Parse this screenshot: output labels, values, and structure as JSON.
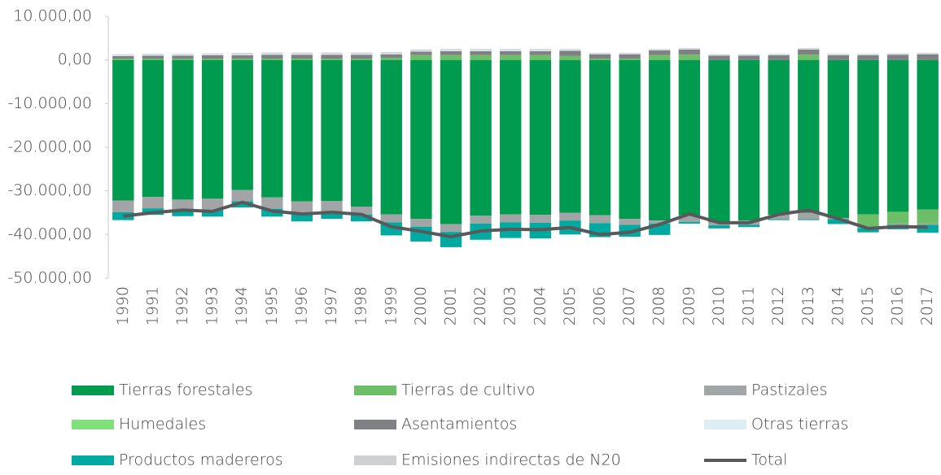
{
  "chart_data": {
    "type": "bar",
    "stacked": true,
    "grid": false,
    "categories": [
      "1990",
      "1991",
      "1992",
      "1993",
      "1994",
      "1995",
      "1996",
      "1997",
      "1998",
      "1999",
      "2000",
      "2001",
      "2002",
      "2003",
      "2004",
      "2005",
      "2006",
      "2007",
      "2008",
      "2009",
      "2010",
      "2011",
      "2012",
      "2013",
      "2014",
      "2015",
      "2016",
      "2017"
    ],
    "ylim": [
      -50000,
      10000
    ],
    "yticks": [
      {
        "value": 10000,
        "label": "10.000,00"
      },
      {
        "value": 0,
        "label": "0,00"
      },
      {
        "value": -10000,
        "label": "-10.000,00"
      },
      {
        "value": -20000,
        "label": "-20.000,00"
      },
      {
        "value": -30000,
        "label": "-30.000,00"
      },
      {
        "value": -40000,
        "label": "-40.000,00"
      },
      {
        "value": -50000,
        "label": "-50.000,00"
      }
    ],
    "series": [
      {
        "name": "Tierras forestales",
        "color": "#009b4f",
        "values": [
          -32200,
          -31400,
          -32000,
          -31800,
          -29800,
          -31500,
          -32400,
          -32300,
          -33600,
          -35400,
          -36400,
          -37600,
          -35700,
          -35400,
          -35500,
          -35000,
          -35600,
          -36400,
          -36800,
          -35600,
          -37200,
          -36800,
          -35500,
          -35000,
          -36200,
          -35400,
          -34800,
          -34300
        ]
      },
      {
        "name": "Tierras de cultivo",
        "color": "#6cbf66",
        "values": [
          300,
          300,
          300,
          300,
          300,
          300,
          300,
          300,
          300,
          500,
          1100,
          1100,
          1100,
          1100,
          1100,
          900,
          300,
          300,
          1100,
          1200,
          0,
          0,
          0,
          1200,
          0,
          -2800,
          -2700,
          -3200
        ]
      },
      {
        "name": "Pastizales",
        "color": "#a2a4a6",
        "values": [
          -2700,
          -2600,
          -2400,
          -2600,
          -2600,
          -2600,
          -2800,
          -2400,
          -1800,
          -1800,
          -1800,
          -1800,
          -1800,
          -1800,
          -1800,
          -1800,
          -1800,
          -1400,
          -700,
          -1500,
          -700,
          -1000,
          -1000,
          -1500,
          -300,
          -300,
          -300,
          -300
        ]
      },
      {
        "name": "Humedales",
        "color": "#7fe07c",
        "values": [
          0,
          0,
          0,
          0,
          0,
          0,
          0,
          0,
          0,
          0,
          0,
          0,
          0,
          0,
          0,
          0,
          0,
          0,
          0,
          0,
          0,
          0,
          0,
          0,
          0,
          0,
          0,
          0
        ]
      },
      {
        "name": "Asentamientos",
        "color": "#808184",
        "values": [
          600,
          700,
          700,
          800,
          800,
          900,
          900,
          900,
          900,
          800,
          800,
          900,
          900,
          900,
          900,
          1200,
          1000,
          1000,
          1100,
          1200,
          1000,
          1000,
          1100,
          1200,
          1100,
          1100,
          1200,
          1300
        ]
      },
      {
        "name": "Otras tierras",
        "color": "#dcedf3",
        "values": [
          200,
          200,
          200,
          200,
          200,
          200,
          200,
          200,
          200,
          200,
          200,
          200,
          200,
          200,
          200,
          200,
          100,
          100,
          100,
          100,
          100,
          100,
          100,
          100,
          100,
          100,
          100,
          100
        ]
      },
      {
        "name": "Productos madereros",
        "color": "#00aaa0",
        "values": [
          -1800,
          -1500,
          -1400,
          -1500,
          -1400,
          -1800,
          -1800,
          -1700,
          -1600,
          -3000,
          -3400,
          -3500,
          -3700,
          -3600,
          -3600,
          -3200,
          -3200,
          -2700,
          -2600,
          -400,
          -700,
          -500,
          -200,
          -200,
          -1100,
          -1000,
          -1000,
          -1800
        ]
      },
      {
        "name": "Emisiones indirectas de N20",
        "color": "#cfd0d2",
        "values": [
          200,
          200,
          200,
          200,
          300,
          300,
          300,
          300,
          300,
          300,
          300,
          300,
          300,
          300,
          300,
          200,
          200,
          200,
          200,
          200,
          200,
          200,
          200,
          200,
          200,
          200,
          200,
          200
        ]
      },
      {
        "name": "Total",
        "type": "line",
        "color": "#58595b",
        "values": [
          -35800,
          -35000,
          -34400,
          -34700,
          -32600,
          -34600,
          -35300,
          -34900,
          -35400,
          -38200,
          -39300,
          -40500,
          -39200,
          -38800,
          -38900,
          -38400,
          -40000,
          -39500,
          -37700,
          -35300,
          -37300,
          -37300,
          -35400,
          -34400,
          -36400,
          -38600,
          -38200,
          -38300
        ]
      }
    ]
  }
}
